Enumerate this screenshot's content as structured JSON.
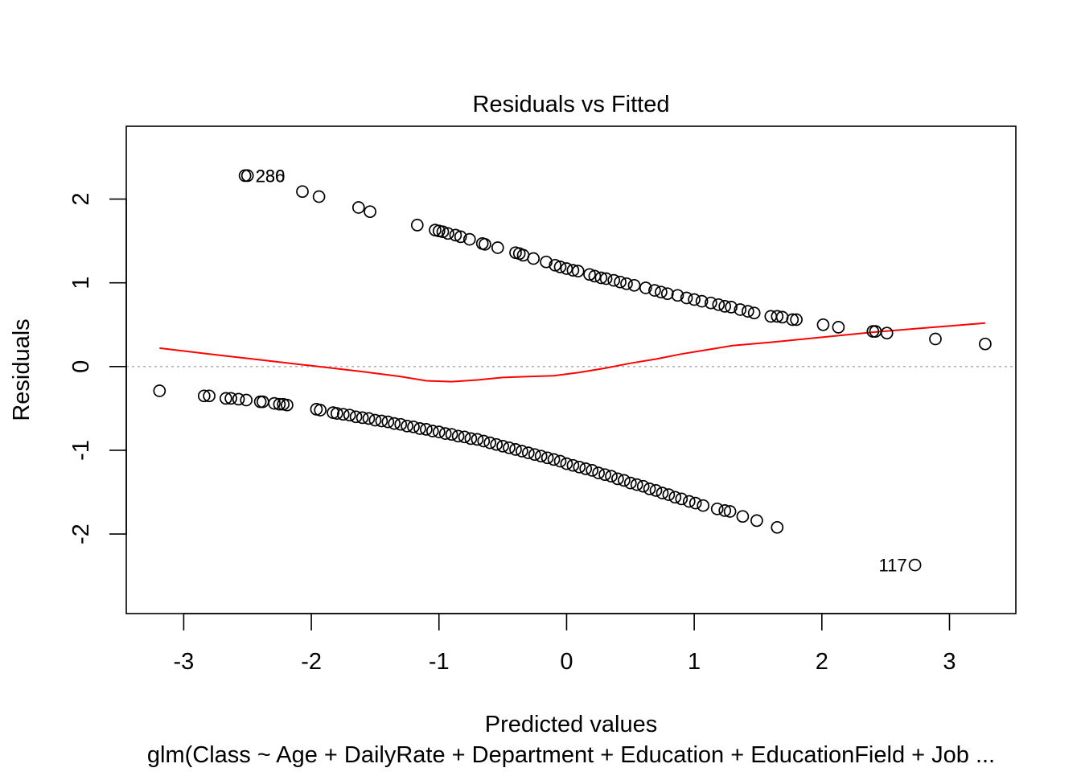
{
  "chart_data": {
    "type": "scatter",
    "title": "Residuals vs Fitted",
    "xlabel": "Predicted values",
    "ylabel": "Residuals",
    "subtitle": "glm(Class ~ Age + DailyRate + Department + Education + EducationField + Job ...",
    "xlim": [
      -3.45,
      3.52
    ],
    "ylim": [
      -2.95,
      2.87
    ],
    "x_ticks": [
      -3,
      -2,
      -1,
      0,
      1,
      2,
      3
    ],
    "x_tick_labels": [
      "-3",
      "-2",
      "-1",
      "0",
      "1",
      "2",
      "3"
    ],
    "y_ticks": [
      -2,
      -1,
      0,
      1,
      2
    ],
    "y_tick_labels": [
      "-2",
      "-1",
      "0",
      "1",
      "2"
    ],
    "reference_line": {
      "y": 0,
      "style": "dotted",
      "color": "#b3b3b3"
    },
    "series": [
      {
        "marker": "open-circle",
        "color": "#000000",
        "points": [
          [
            -2.52,
            2.28
          ],
          [
            -2.5,
            2.28
          ],
          [
            -2.07,
            2.09
          ],
          [
            -1.94,
            2.03
          ],
          [
            -1.63,
            1.9
          ],
          [
            -1.54,
            1.85
          ],
          [
            -1.17,
            1.69
          ],
          [
            -1.03,
            1.63
          ],
          [
            -1.0,
            1.62
          ],
          [
            -0.97,
            1.61
          ],
          [
            -0.93,
            1.59
          ],
          [
            -0.87,
            1.57
          ],
          [
            -0.83,
            1.55
          ],
          [
            -0.76,
            1.52
          ],
          [
            -0.66,
            1.47
          ],
          [
            -0.64,
            1.46
          ],
          [
            -0.54,
            1.42
          ],
          [
            -0.4,
            1.36
          ],
          [
            -0.37,
            1.35
          ],
          [
            -0.34,
            1.33
          ],
          [
            -0.26,
            1.29
          ],
          [
            -0.16,
            1.25
          ],
          [
            -0.09,
            1.21
          ],
          [
            -0.05,
            1.19
          ],
          [
            0.0,
            1.17
          ],
          [
            0.05,
            1.15
          ],
          [
            0.09,
            1.14
          ],
          [
            0.18,
            1.1
          ],
          [
            0.22,
            1.08
          ],
          [
            0.27,
            1.06
          ],
          [
            0.31,
            1.05
          ],
          [
            0.37,
            1.03
          ],
          [
            0.42,
            1.01
          ],
          [
            0.47,
            0.99
          ],
          [
            0.53,
            0.97
          ],
          [
            0.62,
            0.94
          ],
          [
            0.69,
            0.91
          ],
          [
            0.74,
            0.89
          ],
          [
            0.79,
            0.87
          ],
          [
            0.87,
            0.85
          ],
          [
            0.94,
            0.82
          ],
          [
            1.0,
            0.8
          ],
          [
            1.06,
            0.78
          ],
          [
            1.13,
            0.76
          ],
          [
            1.19,
            0.74
          ],
          [
            1.24,
            0.72
          ],
          [
            1.29,
            0.71
          ],
          [
            1.36,
            0.68
          ],
          [
            1.42,
            0.66
          ],
          [
            1.47,
            0.64
          ],
          [
            1.6,
            0.6
          ],
          [
            1.65,
            0.6
          ],
          [
            1.69,
            0.59
          ],
          [
            1.77,
            0.56
          ],
          [
            1.8,
            0.56
          ],
          [
            2.01,
            0.5
          ],
          [
            2.13,
            0.47
          ],
          [
            2.4,
            0.42
          ],
          [
            2.42,
            0.42
          ],
          [
            2.51,
            0.4
          ],
          [
            2.89,
            0.33
          ],
          [
            3.28,
            0.27
          ],
          [
            -3.19,
            -0.29
          ],
          [
            -2.84,
            -0.35
          ],
          [
            -2.8,
            -0.35
          ],
          [
            -2.67,
            -0.38
          ],
          [
            -2.63,
            -0.38
          ],
          [
            -2.57,
            -0.39
          ],
          [
            -2.51,
            -0.4
          ],
          [
            -2.4,
            -0.42
          ],
          [
            -2.38,
            -0.42
          ],
          [
            -2.29,
            -0.44
          ],
          [
            -2.25,
            -0.45
          ],
          [
            -2.22,
            -0.45
          ],
          [
            -2.19,
            -0.46
          ],
          [
            -1.96,
            -0.51
          ],
          [
            -1.93,
            -0.52
          ],
          [
            -1.83,
            -0.55
          ],
          [
            -1.8,
            -0.56
          ],
          [
            -1.75,
            -0.57
          ],
          [
            -1.7,
            -0.58
          ],
          [
            -1.65,
            -0.6
          ],
          [
            -1.6,
            -0.61
          ],
          [
            -1.55,
            -0.62
          ],
          [
            -1.5,
            -0.64
          ],
          [
            -1.45,
            -0.65
          ],
          [
            -1.4,
            -0.66
          ],
          [
            -1.35,
            -0.68
          ],
          [
            -1.3,
            -0.69
          ],
          [
            -1.25,
            -0.71
          ],
          [
            -1.2,
            -0.72
          ],
          [
            -1.15,
            -0.74
          ],
          [
            -1.1,
            -0.75
          ],
          [
            -1.05,
            -0.77
          ],
          [
            -1.0,
            -0.78
          ],
          [
            -0.95,
            -0.8
          ],
          [
            -0.9,
            -0.81
          ],
          [
            -0.85,
            -0.83
          ],
          [
            -0.8,
            -0.84
          ],
          [
            -0.75,
            -0.86
          ],
          [
            -0.7,
            -0.87
          ],
          [
            -0.65,
            -0.89
          ],
          [
            -0.6,
            -0.91
          ],
          [
            -0.55,
            -0.93
          ],
          [
            -0.5,
            -0.95
          ],
          [
            -0.45,
            -0.97
          ],
          [
            -0.4,
            -0.99
          ],
          [
            -0.35,
            -1.01
          ],
          [
            -0.3,
            -1.03
          ],
          [
            -0.25,
            -1.05
          ],
          [
            -0.2,
            -1.07
          ],
          [
            -0.15,
            -1.09
          ],
          [
            -0.1,
            -1.11
          ],
          [
            -0.05,
            -1.13
          ],
          [
            0.0,
            -1.16
          ],
          [
            0.05,
            -1.18
          ],
          [
            0.1,
            -1.2
          ],
          [
            0.15,
            -1.22
          ],
          [
            0.2,
            -1.24
          ],
          [
            0.25,
            -1.27
          ],
          [
            0.3,
            -1.29
          ],
          [
            0.35,
            -1.31
          ],
          [
            0.4,
            -1.34
          ],
          [
            0.45,
            -1.36
          ],
          [
            0.5,
            -1.39
          ],
          [
            0.55,
            -1.41
          ],
          [
            0.6,
            -1.43
          ],
          [
            0.65,
            -1.46
          ],
          [
            0.7,
            -1.48
          ],
          [
            0.75,
            -1.51
          ],
          [
            0.8,
            -1.53
          ],
          [
            0.85,
            -1.56
          ],
          [
            0.9,
            -1.58
          ],
          [
            0.96,
            -1.61
          ],
          [
            1.01,
            -1.63
          ],
          [
            1.07,
            -1.66
          ],
          [
            1.18,
            -1.7
          ],
          [
            1.24,
            -1.72
          ],
          [
            1.28,
            -1.73
          ],
          [
            1.38,
            -1.79
          ],
          [
            1.49,
            -1.84
          ],
          [
            1.65,
            -1.92
          ],
          [
            2.73,
            -2.37
          ]
        ]
      }
    ],
    "smooth_line": {
      "color": "#ff0000",
      "points": [
        [
          -3.19,
          0.22
        ],
        [
          -2.8,
          0.15
        ],
        [
          -2.4,
          0.08
        ],
        [
          -2.0,
          0.01
        ],
        [
          -1.6,
          -0.06
        ],
        [
          -1.3,
          -0.12
        ],
        [
          -1.1,
          -0.17
        ],
        [
          -0.9,
          -0.18
        ],
        [
          -0.7,
          -0.16
        ],
        [
          -0.5,
          -0.13
        ],
        [
          -0.3,
          -0.12
        ],
        [
          -0.1,
          -0.11
        ],
        [
          0.1,
          -0.07
        ],
        [
          0.3,
          -0.02
        ],
        [
          0.5,
          0.04
        ],
        [
          0.7,
          0.09
        ],
        [
          0.9,
          0.15
        ],
        [
          1.1,
          0.2
        ],
        [
          1.3,
          0.25
        ],
        [
          1.6,
          0.29
        ],
        [
          2.0,
          0.35
        ],
        [
          2.4,
          0.41
        ],
        [
          2.8,
          0.46
        ],
        [
          3.28,
          0.52
        ]
      ]
    },
    "annotations": [
      {
        "text": "236",
        "x": -2.5,
        "y": 2.28
      },
      {
        "text": "280",
        "x": -2.5,
        "y": 2.28
      },
      {
        "text": "117",
        "x": 2.73,
        "y": -2.37
      }
    ]
  }
}
